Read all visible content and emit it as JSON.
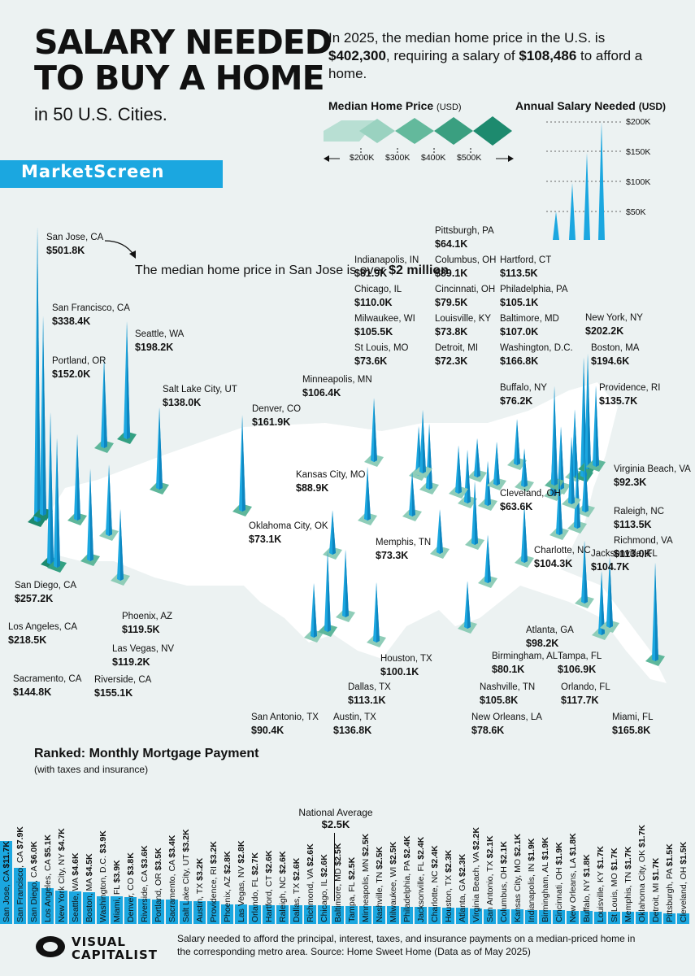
{
  "title_line1": "SALARY NEEDED",
  "title_line2": "TO BUY A HOME",
  "subtitle": "in 50 U.S. Cities.",
  "intro": {
    "p1": "In 2025, the median home price in the U.S. is ",
    "price": "$402,300",
    "p2": ", requiring a salary of ",
    "salary": "$108,486",
    "p3": " to afford a home."
  },
  "legend": {
    "price_title": "Median Home Price",
    "price_unit": "(USD)",
    "price_ticks": [
      "$200K",
      "$300K",
      "$400K",
      "$500K"
    ],
    "salary_title": "Annual Salary Needed",
    "salary_unit": "(USD)",
    "salary_ticks": [
      "$200K",
      "$150K",
      "$100K",
      "$50K"
    ]
  },
  "brand": "MarketScreen",
  "note": {
    "text": "The median home price in San Jose is over ",
    "value": "$2 million",
    "end": "."
  },
  "colors": {
    "accent": "#1ba7e0",
    "teal": "#1d8a6e",
    "map": "#ffffff"
  },
  "chart_data": {
    "type": "bar",
    "title": "Salary needed to buy a home in 50 U.S. cities",
    "cities": [
      {
        "name": "San Jose, CA",
        "salary": "$501.8K",
        "salary_k": 501.8
      },
      {
        "name": "San Francisco, CA",
        "salary": "$338.4K",
        "salary_k": 338.4
      },
      {
        "name": "Seattle, WA",
        "salary": "$198.2K",
        "salary_k": 198.2
      },
      {
        "name": "Portland, OR",
        "salary": "$152.0K",
        "salary_k": 152.0
      },
      {
        "name": "Salt Lake City, UT",
        "salary": "$138.0K",
        "salary_k": 138.0
      },
      {
        "name": "Denver, CO",
        "salary": "$161.9K",
        "salary_k": 161.9
      },
      {
        "name": "Minneapolis, MN",
        "salary": "$106.4K",
        "salary_k": 106.4
      },
      {
        "name": "Indianapolis, IN",
        "salary": "$81.9K",
        "salary_k": 81.9
      },
      {
        "name": "Chicago, IL",
        "salary": "$110.0K",
        "salary_k": 110.0
      },
      {
        "name": "Milwaukee, WI",
        "salary": "$105.5K",
        "salary_k": 105.5
      },
      {
        "name": "St Louis, MO",
        "salary": "$73.6K",
        "salary_k": 73.6
      },
      {
        "name": "Pittsburgh, PA",
        "salary": "$64.1K",
        "salary_k": 64.1
      },
      {
        "name": "Columbus, OH",
        "salary": "$89.1K",
        "salary_k": 89.1
      },
      {
        "name": "Cincinnati, OH",
        "salary": "$79.5K",
        "salary_k": 79.5
      },
      {
        "name": "Louisville, KY",
        "salary": "$73.8K",
        "salary_k": 73.8
      },
      {
        "name": "Detroit, MI",
        "salary": "$72.3K",
        "salary_k": 72.3
      },
      {
        "name": "Hartford, CT",
        "salary": "$113.5K",
        "salary_k": 113.5
      },
      {
        "name": "Philadelphia, PA",
        "salary": "$105.1K",
        "salary_k": 105.1
      },
      {
        "name": "Baltimore, MD",
        "salary": "$107.0K",
        "salary_k": 107.0
      },
      {
        "name": "Washington, D.C.",
        "salary": "$166.8K",
        "salary_k": 166.8
      },
      {
        "name": "New York, NY",
        "salary": "$202.2K",
        "salary_k": 202.2
      },
      {
        "name": "Boston, MA",
        "salary": "$194.6K",
        "salary_k": 194.6
      },
      {
        "name": "Providence, RI",
        "salary": "$135.7K",
        "salary_k": 135.7
      },
      {
        "name": "Buffalo, NY",
        "salary": "$76.2K",
        "salary_k": 76.2
      },
      {
        "name": "Kansas City, MO",
        "salary": "$88.9K",
        "salary_k": 88.9
      },
      {
        "name": "Cleveland, OH",
        "salary": "$63.6K",
        "salary_k": 63.6
      },
      {
        "name": "Virginia Beach, VA",
        "salary": "$92.3K",
        "salary_k": 92.3
      },
      {
        "name": "Raleigh, NC",
        "salary": "$113.5K",
        "salary_k": 113.5
      },
      {
        "name": "Richmond, VA",
        "salary": "$113.0K",
        "salary_k": 113.0
      },
      {
        "name": "Oklahoma City, OK",
        "salary": "$73.1K",
        "salary_k": 73.1
      },
      {
        "name": "Memphis, TN",
        "salary": "$73.3K",
        "salary_k": 73.3
      },
      {
        "name": "Charlotte, NC",
        "salary": "$104.3K",
        "salary_k": 104.3
      },
      {
        "name": "Jacksonville, FL",
        "salary": "$104.7K",
        "salary_k": 104.7
      },
      {
        "name": "San Diego, CA",
        "salary": "$257.2K",
        "salary_k": 257.2
      },
      {
        "name": "Los Angeles, CA",
        "salary": "$218.5K",
        "salary_k": 218.5
      },
      {
        "name": "Phoenix, AZ",
        "salary": "$119.5K",
        "salary_k": 119.5
      },
      {
        "name": "Las Vegas, NV",
        "salary": "$119.2K",
        "salary_k": 119.2
      },
      {
        "name": "Sacramento, CA",
        "salary": "$144.8K",
        "salary_k": 144.8
      },
      {
        "name": "Riverside, CA",
        "salary": "$155.1K",
        "salary_k": 155.1
      },
      {
        "name": "Atlanta, GA",
        "salary": "$98.2K",
        "salary_k": 98.2
      },
      {
        "name": "Birmingham, AL",
        "salary": "$80.1K",
        "salary_k": 80.1
      },
      {
        "name": "Tampa, FL",
        "salary": "$106.9K",
        "salary_k": 106.9
      },
      {
        "name": "Orlando, FL",
        "salary": "$117.7K",
        "salary_k": 117.7
      },
      {
        "name": "Houston, TX",
        "salary": "$100.1K",
        "salary_k": 100.1
      },
      {
        "name": "Dallas, TX",
        "salary": "$113.1K",
        "salary_k": 113.1
      },
      {
        "name": "Nashville, TN",
        "salary": "$105.8K",
        "salary_k": 105.8
      },
      {
        "name": "New Orleans, LA",
        "salary": "$78.6K",
        "salary_k": 78.6
      },
      {
        "name": "San Antonio, TX",
        "salary": "$90.4K",
        "salary_k": 90.4
      },
      {
        "name": "Austin, TX",
        "salary": "$136.8K",
        "salary_k": 136.8
      },
      {
        "name": "Miami, FL",
        "salary": "$165.8K",
        "salary_k": 165.8
      }
    ],
    "ranked": {
      "title": "Ranked: Monthly Mortgage Payment",
      "subtitle": "(with taxes and insurance)",
      "national_average_label": "National Average",
      "national_average": "$2.5K",
      "national_average_k": 2.5,
      "items": [
        {
          "city": "San Jose, CA",
          "payment": "$11.7K",
          "value": 11.7
        },
        {
          "city": "San Francisco, CA",
          "payment": "$7.9K",
          "value": 7.9
        },
        {
          "city": "San Diego, CA",
          "payment": "$6.0K",
          "value": 6.0
        },
        {
          "city": "Los Angeles, CA",
          "payment": "$5.1K",
          "value": 5.1
        },
        {
          "city": "New York City, NY",
          "payment": "$4.7K",
          "value": 4.7
        },
        {
          "city": "Seattle, WA",
          "payment": "$4.6K",
          "value": 4.6
        },
        {
          "city": "Boston, MA",
          "payment": "$4.5K",
          "value": 4.5
        },
        {
          "city": "Washington, D.C.",
          "payment": "$3.9K",
          "value": 3.9
        },
        {
          "city": "Miami, FL",
          "payment": "$3.9K",
          "value": 3.9
        },
        {
          "city": "Denver, CO",
          "payment": "$3.8K",
          "value": 3.8
        },
        {
          "city": "Riverside, CA",
          "payment": "$3.6K",
          "value": 3.6
        },
        {
          "city": "Portland, OR",
          "payment": "$3.5K",
          "value": 3.5
        },
        {
          "city": "Sacramento, CA",
          "payment": "$3.4K",
          "value": 3.4
        },
        {
          "city": "Salt Lake City, UT",
          "payment": "$3.2K",
          "value": 3.2
        },
        {
          "city": "Austin, TX",
          "payment": "$3.2K",
          "value": 3.2
        },
        {
          "city": "Providence, RI",
          "payment": "$3.2K",
          "value": 3.2
        },
        {
          "city": "Phoenix, AZ",
          "payment": "$2.8K",
          "value": 2.8
        },
        {
          "city": "Las Vegas, NV",
          "payment": "$2.8K",
          "value": 2.8
        },
        {
          "city": "Orlando, FL",
          "payment": "$2.7K",
          "value": 2.7
        },
        {
          "city": "Hartford, CT",
          "payment": "$2.6K",
          "value": 2.6
        },
        {
          "city": "Raleigh, NC",
          "payment": "$2.6K",
          "value": 2.6
        },
        {
          "city": "Dallas, TX",
          "payment": "$2.6K",
          "value": 2.6
        },
        {
          "city": "Richmond, VA",
          "payment": "$2.6K",
          "value": 2.6
        },
        {
          "city": "Chicago, IL",
          "payment": "$2.6K",
          "value": 2.6
        },
        {
          "city": "Baltimore, MD",
          "payment": "$2.5K",
          "value": 2.5
        },
        {
          "city": "Tampa, FL",
          "payment": "$2.5K",
          "value": 2.5
        },
        {
          "city": "Minneapolis, MN",
          "payment": "$2.5K",
          "value": 2.5
        },
        {
          "city": "Nashville, TN",
          "payment": "$2.5K",
          "value": 2.5
        },
        {
          "city": "Milwaukee, WI",
          "payment": "$2.5K",
          "value": 2.5
        },
        {
          "city": "Philadelphia, PA",
          "payment": "$2.4K",
          "value": 2.4
        },
        {
          "city": "Jacksonville, FL",
          "payment": "$2.4K",
          "value": 2.4
        },
        {
          "city": "Charlotte, NC",
          "payment": "$2.4K",
          "value": 2.4
        },
        {
          "city": "Houston, TX",
          "payment": "$2.3K",
          "value": 2.3
        },
        {
          "city": "Atlanta, GA",
          "payment": "$2.3K",
          "value": 2.3
        },
        {
          "city": "Virginia Beach, VA",
          "payment": "$2.2K",
          "value": 2.2
        },
        {
          "city": "San Antonio, TX",
          "payment": "$2.1K",
          "value": 2.1
        },
        {
          "city": "Columbus, OH",
          "payment": "$2.1K",
          "value": 2.1
        },
        {
          "city": "Kansas City, MO",
          "payment": "$2.1K",
          "value": 2.1
        },
        {
          "city": "Indianapolis, IN",
          "payment": "$1.9K",
          "value": 1.9
        },
        {
          "city": "Birmingham, AL",
          "payment": "$1.9K",
          "value": 1.9
        },
        {
          "city": "Cincinnati, OH",
          "payment": "$1.9K",
          "value": 1.9
        },
        {
          "city": "New Orleans, LA",
          "payment": "$1.8K",
          "value": 1.8
        },
        {
          "city": "Buffalo, NY",
          "payment": "$1.8K",
          "value": 1.8
        },
        {
          "city": "Louisville, KY",
          "payment": "$1.7K",
          "value": 1.7
        },
        {
          "city": "St Louis, MO",
          "payment": "$1.7K",
          "value": 1.7
        },
        {
          "city": "Memphis, TN",
          "payment": "$1.7K",
          "value": 1.7
        },
        {
          "city": "Oklahoma City, OK",
          "payment": "$1.7K",
          "value": 1.7
        },
        {
          "city": "Detroit, MI",
          "payment": "$1.7K",
          "value": 1.7
        },
        {
          "city": "Pittsburgh, PA",
          "payment": "$1.5K",
          "value": 1.5
        },
        {
          "city": "Cleveland, OH",
          "payment": "$1.5K",
          "value": 1.5
        }
      ]
    }
  },
  "footer": {
    "logo_line1": "VISUAL",
    "logo_line2": "CAPITALIST",
    "text": "Salary needed to afford the principal, interest, taxes, and insurance payments on a median-priced home in the corresponding metro area. Source: Home Sweet Home (Data as of May 2025)"
  }
}
